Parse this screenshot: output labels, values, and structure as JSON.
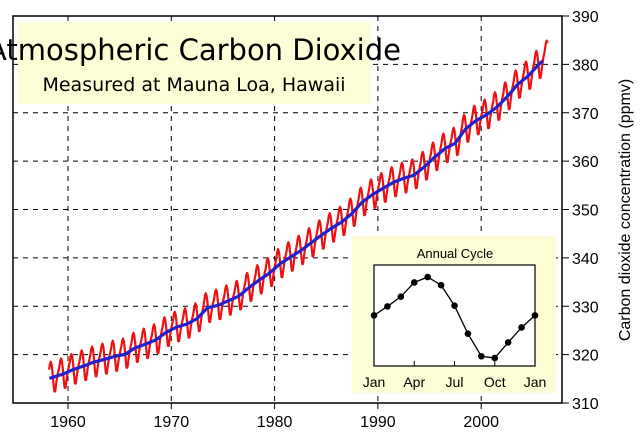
{
  "chart_data": {
    "type": "line",
    "title": "Atmospheric Carbon Dioxide",
    "subtitle": "Measured at Mauna Loa, Hawaii",
    "xlabel": "",
    "ylabel": "Carbon dioxide concentration (ppmv)",
    "xlim": [
      1955,
      2008
    ],
    "ylim": [
      310,
      390
    ],
    "x_ticks": [
      "1960",
      "1970",
      "1980",
      "1990",
      "2000"
    ],
    "y_ticks": [
      "310",
      "320",
      "330",
      "340",
      "350",
      "360",
      "370",
      "380",
      "390"
    ],
    "grid": true,
    "y_axis_side": "right",
    "colors": {
      "monthly": "#ee1111",
      "trend": "#2222cc",
      "title_box": "#fdfdd6",
      "inset_box": "#fdfdd6"
    },
    "series": [
      {
        "role": "annual-trend",
        "x": [
          1958,
          1959,
          1960,
          1961,
          1962,
          1963,
          1964,
          1965,
          1966,
          1967,
          1968,
          1969,
          1970,
          1971,
          1972,
          1973,
          1974,
          1975,
          1976,
          1977,
          1978,
          1979,
          1980,
          1981,
          1982,
          1983,
          1984,
          1985,
          1986,
          1987,
          1988,
          1989,
          1990,
          1991,
          1992,
          1993,
          1994,
          1995,
          1996,
          1997,
          1998,
          1999,
          2000,
          2001,
          2002,
          2003,
          2004,
          2005,
          2006
        ],
        "y": [
          315.3,
          315.97,
          316.91,
          317.64,
          318.45,
          318.99,
          319.62,
          320.04,
          321.38,
          322.16,
          323.04,
          324.62,
          325.68,
          326.32,
          327.45,
          329.68,
          330.18,
          331.11,
          332.04,
          333.83,
          335.4,
          336.84,
          338.75,
          340.11,
          341.45,
          343.05,
          344.65,
          346.12,
          347.42,
          349.19,
          351.57,
          353.12,
          354.39,
          355.61,
          356.45,
          357.1,
          358.83,
          360.82,
          362.61,
          363.73,
          366.7,
          368.38,
          369.55,
          371.14,
          373.28,
          375.8,
          377.52,
          379.8,
          381.9
        ]
      }
    ],
    "inset": {
      "title": "Annual Cycle",
      "type": "line",
      "categories": [
        "Jan",
        "Feb",
        "Mar",
        "Apr",
        "May",
        "Jun",
        "Jul",
        "Aug",
        "Sep",
        "Oct",
        "Nov",
        "Dec",
        "Jan"
      ],
      "x_tick_labels": [
        "Jan",
        "Apr",
        "Jul",
        "Oct",
        "Jan"
      ],
      "values": [
        0,
        0.72,
        1.5,
        2.64,
        3.08,
        2.42,
        0.78,
        -1.47,
        -3.28,
        -3.42,
        -2.17,
        -0.97,
        0
      ]
    }
  }
}
